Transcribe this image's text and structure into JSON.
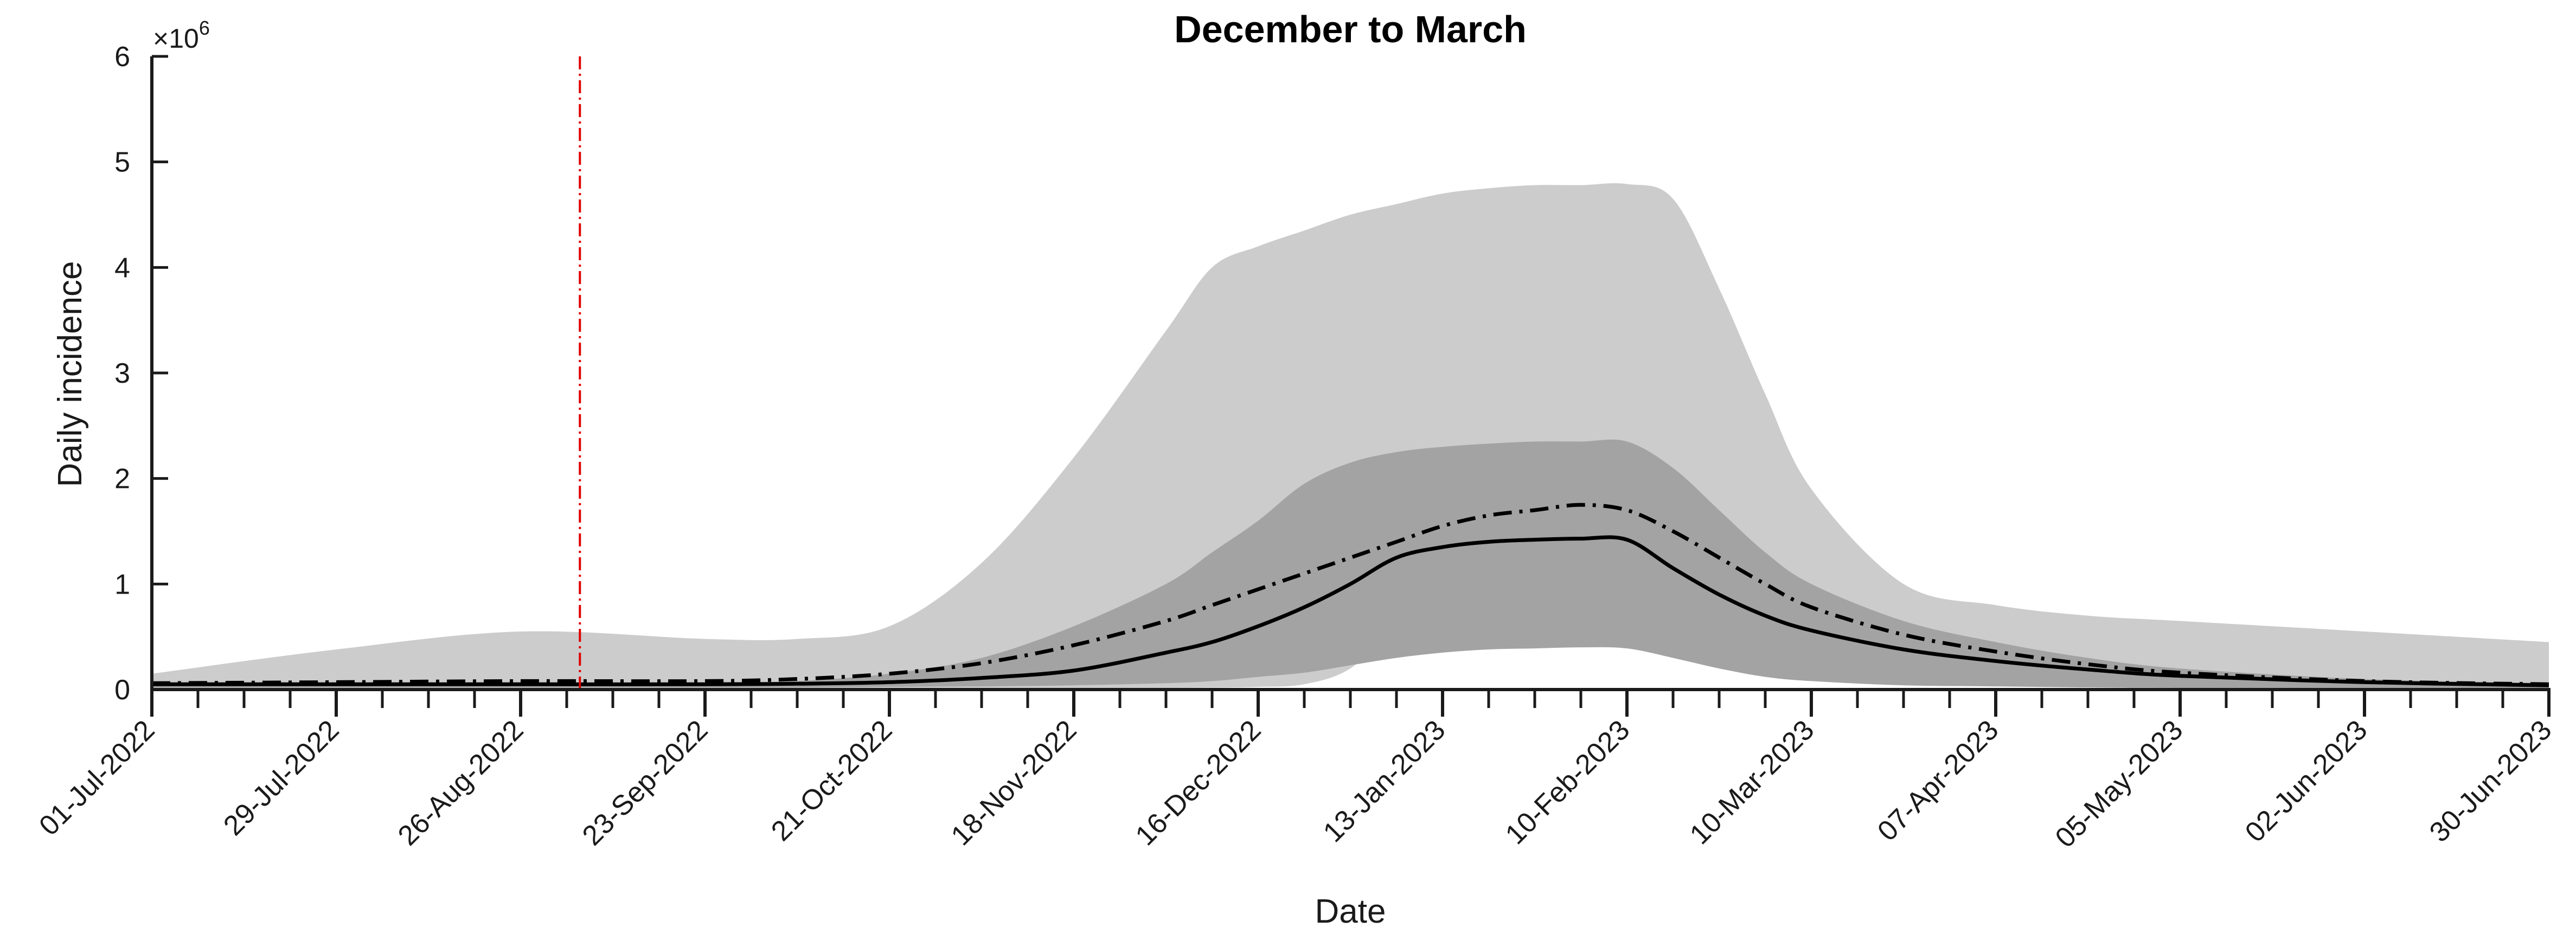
{
  "chart_data": {
    "type": "area",
    "title": "December to March",
    "xlabel": "Date",
    "ylabel": "Daily incidence",
    "y_multiplier_label": "×10",
    "y_multiplier_exponent": "6",
    "ylim": [
      0,
      6000000
    ],
    "yticks": [
      0,
      1000000,
      2000000,
      3000000,
      4000000,
      5000000,
      6000000
    ],
    "ytick_labels": [
      "0",
      "1",
      "2",
      "3",
      "4",
      "5",
      "6"
    ],
    "xlim": [
      "2022-07-01",
      "2023-06-30"
    ],
    "xtick_dates": [
      "2022-07-01",
      "2022-07-29",
      "2022-08-26",
      "2022-09-23",
      "2022-10-21",
      "2022-11-18",
      "2022-12-16",
      "2023-01-13",
      "2023-02-10",
      "2023-03-10",
      "2023-04-07",
      "2023-05-05",
      "2023-06-02",
      "2023-06-30"
    ],
    "xtick_labels": [
      "01-Jul-2022",
      "29-Jul-2022",
      "26-Aug-2022",
      "23-Sep-2022",
      "21-Oct-2022",
      "18-Nov-2022",
      "16-Dec-2022",
      "13-Jan-2023",
      "10-Feb-2023",
      "10-Mar-2023",
      "07-Apr-2023",
      "05-May-2023",
      "02-Jun-2023",
      "30-Jun-2023"
    ],
    "vline": {
      "x": "2022-09-04",
      "color": "#e00000",
      "style": "dash-dot"
    },
    "x": [
      "2022-07-01",
      "2022-07-29",
      "2022-08-26",
      "2022-09-23",
      "2022-10-07",
      "2022-10-21",
      "2022-11-04",
      "2022-11-18",
      "2022-12-02",
      "2022-12-09",
      "2022-12-16",
      "2022-12-23",
      "2022-12-30",
      "2023-01-06",
      "2023-01-13",
      "2023-01-20",
      "2023-01-27",
      "2023-02-03",
      "2023-02-10",
      "2023-02-17",
      "2023-02-24",
      "2023-03-03",
      "2023-03-10",
      "2023-03-24",
      "2023-04-07",
      "2023-04-21",
      "2023-05-05",
      "2023-06-02",
      "2023-06-30"
    ],
    "series": [
      {
        "kind": "band",
        "color": "#cccccc",
        "lower": [
          5000,
          5000,
          5000,
          5000,
          5000,
          6000,
          8000,
          10000,
          15000,
          18000,
          25000,
          50000,
          200000,
          600000,
          850000,
          900000,
          800000,
          700000,
          600000,
          500000,
          400000,
          300000,
          200000,
          120000,
          80000,
          50000,
          30000,
          15000,
          10000
        ],
        "upper": [
          150000,
          380000,
          550000,
          480000,
          480000,
          600000,
          1200000,
          2200000,
          3400000,
          4000000,
          4200000,
          4350000,
          4500000,
          4600000,
          4700000,
          4750000,
          4780000,
          4780000,
          4790000,
          4650000,
          3800000,
          2800000,
          1900000,
          1000000,
          800000,
          700000,
          650000,
          550000,
          450000
        ]
      },
      {
        "kind": "band",
        "color": "#a3a3a3",
        "lower": [
          20000,
          20000,
          20000,
          20000,
          20000,
          25000,
          30000,
          40000,
          60000,
          80000,
          120000,
          160000,
          230000,
          300000,
          350000,
          380000,
          390000,
          400000,
          390000,
          300000,
          200000,
          120000,
          80000,
          40000,
          30000,
          20000,
          15000,
          10000,
          10000
        ],
        "upper": [
          60000,
          60000,
          60000,
          60000,
          80000,
          150000,
          300000,
          600000,
          1000000,
          1300000,
          1600000,
          1950000,
          2150000,
          2250000,
          2300000,
          2330000,
          2350000,
          2350000,
          2350000,
          2100000,
          1700000,
          1300000,
          1000000,
          650000,
          450000,
          300000,
          200000,
          100000,
          60000
        ]
      },
      {
        "kind": "line",
        "style": "solid",
        "color": "#000000",
        "values": [
          50000,
          50000,
          50000,
          50000,
          55000,
          70000,
          110000,
          180000,
          350000,
          450000,
          600000,
          780000,
          1000000,
          1250000,
          1350000,
          1400000,
          1420000,
          1430000,
          1420000,
          1150000,
          900000,
          700000,
          560000,
          380000,
          270000,
          190000,
          130000,
          70000,
          40000
        ]
      },
      {
        "kind": "line",
        "style": "dash-dot",
        "color": "#000000",
        "values": [
          60000,
          70000,
          80000,
          80000,
          100000,
          150000,
          250000,
          420000,
          650000,
          800000,
          950000,
          1100000,
          1250000,
          1400000,
          1550000,
          1650000,
          1700000,
          1750000,
          1700000,
          1500000,
          1250000,
          1000000,
          780000,
          520000,
          360000,
          240000,
          160000,
          80000,
          50000
        ]
      }
    ]
  }
}
